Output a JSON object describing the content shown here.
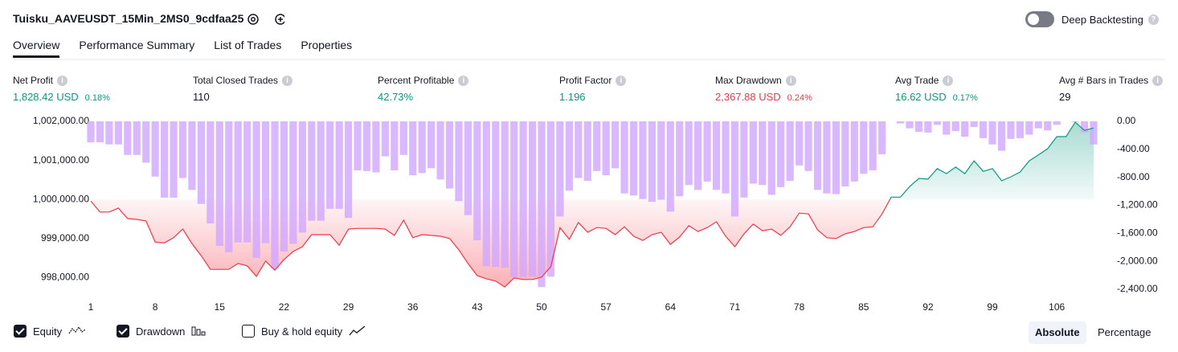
{
  "header": {
    "title": "Tuisku_AAVEUSDT_15Min_2MS0_9cdfaa25",
    "toggle_label": "Deep Backtesting"
  },
  "tabs": [
    "Overview",
    "Performance Summary",
    "List of Trades",
    "Properties"
  ],
  "stats": [
    {
      "label": "Net Profit",
      "value": "1,828.42 USD",
      "percent": "0.18%",
      "color": "#089981"
    },
    {
      "label": "Total Closed Trades",
      "value": "110",
      "color": "#131722"
    },
    {
      "label": "Percent Profitable",
      "value": "42.73%",
      "color": "#089981"
    },
    {
      "label": "Profit Factor",
      "value": "1.196",
      "color": "#089981"
    },
    {
      "label": "Max Drawdown",
      "value": "2,367.88 USD",
      "percent": "0.24%",
      "color": "#f23645"
    },
    {
      "label": "Avg Trade",
      "value": "16.62 USD",
      "percent": "0.17%",
      "color": "#089981"
    },
    {
      "label": "Avg # Bars in Trades",
      "value": "29",
      "color": "#131722"
    }
  ],
  "chart_data": {
    "type": "equity-drawdown",
    "x": [
      1,
      2,
      3,
      4,
      5,
      6,
      7,
      8,
      9,
      10,
      11,
      12,
      13,
      14,
      15,
      16,
      17,
      18,
      19,
      20,
      21,
      22,
      23,
      24,
      25,
      26,
      27,
      28,
      29,
      30,
      31,
      32,
      33,
      34,
      35,
      36,
      37,
      38,
      39,
      40,
      41,
      42,
      43,
      44,
      45,
      46,
      47,
      48,
      49,
      50,
      51,
      52,
      53,
      54,
      55,
      56,
      57,
      58,
      59,
      60,
      61,
      62,
      63,
      64,
      65,
      66,
      67,
      68,
      69,
      70,
      71,
      72,
      73,
      74,
      75,
      76,
      77,
      78,
      79,
      80,
      81,
      82,
      83,
      84,
      85,
      86,
      87,
      88,
      89,
      90,
      91,
      92,
      93,
      94,
      95,
      96,
      97,
      98,
      99,
      100,
      101,
      102,
      103,
      104,
      105,
      106,
      107,
      108,
      109,
      110
    ],
    "xlim": [
      1,
      110
    ],
    "xticks": [
      1,
      8,
      15,
      22,
      29,
      36,
      43,
      50,
      57,
      64,
      71,
      78,
      85,
      92,
      99,
      106
    ],
    "ylim": [
      997700,
      1002000
    ],
    "yticks": [
      {
        "value": 998000,
        "label": "998,000.00"
      },
      {
        "value": 999000,
        "label": "999,000.00"
      },
      {
        "value": 1000000,
        "label": "1,000,000.00"
      },
      {
        "value": 1001000,
        "label": "1,001,000.00"
      },
      {
        "value": 1002000,
        "label": "1,002,000.00"
      }
    ],
    "y2lim": [
      -2400,
      0
    ],
    "y2ticks": [
      {
        "value": 0,
        "label": "0.00"
      },
      {
        "value": -400,
        "label": "-400.00"
      },
      {
        "value": -800,
        "label": "-800.00"
      },
      {
        "value": -1200,
        "label": "-1,200.00"
      },
      {
        "value": -1600,
        "label": "-1,600.00"
      },
      {
        "value": -2000,
        "label": "-2,000.00"
      },
      {
        "value": -2400,
        "label": "-2,400.00"
      }
    ],
    "baseline": 1000000,
    "series": [
      {
        "name": "Equity",
        "checked": true,
        "axis": "y",
        "color_up": "#089981",
        "color_down": "#f23645",
        "values": [
          999960,
          999680,
          999680,
          999780,
          999510,
          999490,
          999450,
          998910,
          998890,
          999020,
          999240,
          998870,
          998560,
          998210,
          998210,
          998210,
          998360,
          998300,
          998030,
          998420,
          998190,
          998460,
          998670,
          998790,
          999100,
          999100,
          999100,
          998830,
          999240,
          999260,
          999260,
          999260,
          999240,
          999080,
          999470,
          999020,
          999100,
          999080,
          999060,
          999000,
          998710,
          998360,
          998050,
          997970,
          997910,
          997760,
          997990,
          997950,
          997950,
          998010,
          998280,
          999280,
          998980,
          999410,
          999160,
          999280,
          999260,
          999100,
          999300,
          999060,
          998950,
          999100,
          999160,
          998850,
          999040,
          999330,
          999180,
          999280,
          999430,
          999060,
          998790,
          999120,
          999370,
          999200,
          999240,
          999080,
          999300,
          999650,
          999630,
          999220,
          999020,
          999000,
          999120,
          999180,
          999280,
          999300,
          999630,
          1000060,
          1000060,
          1000330,
          1000540,
          1000520,
          1000790,
          1000660,
          1000830,
          1000660,
          1000990,
          1000720,
          1000790,
          1000480,
          1000580,
          1000700,
          1000990,
          1001140,
          1001300,
          1001610,
          1001610,
          1001980,
          1001770,
          1001830
        ]
      },
      {
        "name": "Drawdown",
        "checked": true,
        "axis": "y2",
        "color": "#d1a6ff",
        "values": [
          -300,
          -300,
          -330,
          -330,
          -480,
          -480,
          -590,
          -790,
          -1090,
          -1090,
          -810,
          -980,
          -1180,
          -1460,
          -1780,
          -1870,
          -1730,
          -1730,
          -1950,
          -1740,
          -2100,
          -1860,
          -1750,
          -1590,
          -1420,
          -1420,
          -1250,
          -1250,
          -1380,
          -700,
          -710,
          -730,
          -500,
          -700,
          -480,
          -770,
          -740,
          -670,
          -830,
          -960,
          -1140,
          -1340,
          -1700,
          -2070,
          -2080,
          -2090,
          -2230,
          -2220,
          -2220,
          -2368,
          -2220,
          -1360,
          -990,
          -810,
          -850,
          -710,
          -770,
          -670,
          -1030,
          -1060,
          -1110,
          -1150,
          -1120,
          -1290,
          -1070,
          -910,
          -980,
          -860,
          -980,
          -1030,
          -1360,
          -1090,
          -890,
          -910,
          -1050,
          -940,
          -850,
          -630,
          -710,
          -980,
          -1030,
          -1040,
          -930,
          -860,
          -750,
          -700,
          -470,
          0,
          -30,
          -100,
          -150,
          -160,
          -50,
          -190,
          -140,
          -220,
          -80,
          -240,
          -330,
          -420,
          -250,
          -240,
          -190,
          -100,
          -130,
          -50,
          0,
          -10,
          -160,
          -330
        ]
      }
    ],
    "buy_hold": {
      "name": "Buy & hold equity",
      "checked": false
    }
  },
  "footer": {
    "buttons": [
      {
        "label": "Absolute",
        "selected": true
      },
      {
        "label": "Percentage",
        "selected": false
      }
    ]
  }
}
